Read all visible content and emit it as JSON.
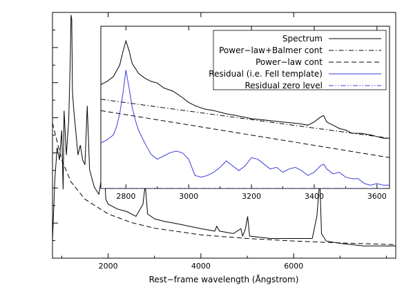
{
  "chart_data": [
    {
      "type": "line",
      "xlabel": "Rest−frame wavelength (Ångstrom)",
      "ylabel": "",
      "xlim": [
        800,
        8200
      ],
      "ylim": [
        0,
        1
      ],
      "x_ticks": [
        "2000",
        "4000",
        "6000"
      ],
      "x_tick_values": [
        2000,
        4000,
        6000
      ],
      "series": [
        {
          "name": "Spectrum",
          "style": "solid",
          "color": "#000000",
          "x": [
            800,
            850,
            900,
            950,
            1000,
            1030,
            1050,
            1100,
            1150,
            1180,
            1200,
            1216,
            1230,
            1260,
            1300,
            1350,
            1400,
            1450,
            1500,
            1549,
            1600,
            1700,
            1800,
            1850,
            1909,
            1950,
            2000,
            2200,
            2400,
            2600,
            2750,
            2800,
            2850,
            3000,
            3200,
            3500,
            4000,
            4300,
            4340,
            4400,
            4700,
            4860,
            4900,
            4960,
            5007,
            5050,
            5500,
            6000,
            6400,
            6500,
            6563,
            6600,
            6700,
            7000,
            7500,
            8000,
            8200
          ],
          "y": [
            0.07,
            0.32,
            0.45,
            0.4,
            0.52,
            0.28,
            0.6,
            0.42,
            0.56,
            0.78,
            0.99,
            0.97,
            0.68,
            0.6,
            0.52,
            0.42,
            0.46,
            0.4,
            0.38,
            0.62,
            0.36,
            0.29,
            0.26,
            0.32,
            0.4,
            0.24,
            0.22,
            0.2,
            0.19,
            0.17,
            0.22,
            0.3,
            0.18,
            0.16,
            0.15,
            0.14,
            0.12,
            0.11,
            0.13,
            0.11,
            0.1,
            0.12,
            0.09,
            0.12,
            0.17,
            0.09,
            0.08,
            0.08,
            0.08,
            0.17,
            0.32,
            0.1,
            0.07,
            0.06,
            0.05,
            0.05,
            0.05
          ]
        },
        {
          "name": "Power−law cont",
          "style": "dashed",
          "color": "#000000",
          "x": [
            800,
            1000,
            1200,
            1500,
            2000,
            2500,
            3000,
            4000,
            5000,
            6000,
            7000,
            8200
          ],
          "y": [
            0.55,
            0.4,
            0.31,
            0.24,
            0.18,
            0.145,
            0.122,
            0.095,
            0.08,
            0.07,
            0.062,
            0.055
          ]
        }
      ]
    },
    {
      "type": "line",
      "xlabel": "",
      "ylabel": "",
      "xlim": [
        2720,
        3640
      ],
      "ylim": [
        0,
        1
      ],
      "x_ticks": [
        "2800",
        "3000",
        "3200",
        "3400",
        "3600"
      ],
      "x_tick_values": [
        2800,
        3000,
        3200,
        3400,
        3600
      ],
      "legend": "top-right",
      "series": [
        {
          "name": "Spectrum",
          "style": "solid",
          "color": "#000000",
          "x": [
            2720,
            2740,
            2760,
            2780,
            2790,
            2800,
            2810,
            2820,
            2840,
            2860,
            2880,
            2900,
            2920,
            2950,
            2980,
            3000,
            3020,
            3050,
            3080,
            3100,
            3120,
            3150,
            3200,
            3250,
            3300,
            3350,
            3380,
            3400,
            3420,
            3430,
            3440,
            3460,
            3480,
            3500,
            3520,
            3550,
            3580,
            3600,
            3620,
            3640
          ],
          "y": [
            0.64,
            0.66,
            0.69,
            0.76,
            0.84,
            0.91,
            0.85,
            0.77,
            0.71,
            0.68,
            0.66,
            0.65,
            0.62,
            0.6,
            0.56,
            0.53,
            0.51,
            0.49,
            0.48,
            0.47,
            0.46,
            0.45,
            0.43,
            0.42,
            0.41,
            0.4,
            0.39,
            0.41,
            0.44,
            0.45,
            0.41,
            0.39,
            0.37,
            0.36,
            0.34,
            0.34,
            0.33,
            0.32,
            0.31,
            0.31
          ]
        },
        {
          "name": "Power−law+Balmer cont",
          "style": "dashdot",
          "color": "#000000",
          "x": [
            2720,
            3640
          ],
          "y": [
            0.55,
            0.31
          ]
        },
        {
          "name": "Power−law cont",
          "style": "dashed",
          "color": "#000000",
          "x": [
            2720,
            3640
          ],
          "y": [
            0.48,
            0.19
          ]
        },
        {
          "name": "Residual (i.e. FeII template)",
          "style": "solid",
          "color": "#3b3bd6",
          "x": [
            2720,
            2740,
            2760,
            2770,
            2780,
            2790,
            2800,
            2810,
            2820,
            2830,
            2840,
            2860,
            2880,
            2900,
            2920,
            2940,
            2960,
            2980,
            3000,
            3020,
            3040,
            3060,
            3080,
            3100,
            3120,
            3140,
            3160,
            3180,
            3200,
            3220,
            3240,
            3260,
            3280,
            3300,
            3320,
            3340,
            3360,
            3380,
            3400,
            3420,
            3430,
            3440,
            3460,
            3480,
            3500,
            3520,
            3540,
            3560,
            3580,
            3600,
            3620,
            3640
          ],
          "y": [
            0.28,
            0.3,
            0.33,
            0.38,
            0.46,
            0.58,
            0.73,
            0.62,
            0.5,
            0.42,
            0.36,
            0.28,
            0.21,
            0.18,
            0.2,
            0.22,
            0.23,
            0.22,
            0.18,
            0.08,
            0.07,
            0.08,
            0.1,
            0.13,
            0.17,
            0.14,
            0.11,
            0.14,
            0.19,
            0.18,
            0.15,
            0.12,
            0.13,
            0.1,
            0.12,
            0.13,
            0.11,
            0.08,
            0.1,
            0.14,
            0.15,
            0.12,
            0.09,
            0.1,
            0.07,
            0.06,
            0.06,
            0.03,
            0.02,
            0.03,
            0.02,
            0.02
          ]
        },
        {
          "name": "Residual zero level",
          "style": "dashdotdot",
          "color": "#3b3bd6",
          "x": [
            2720,
            3640
          ],
          "y": [
            0.0,
            0.0
          ]
        }
      ]
    }
  ]
}
